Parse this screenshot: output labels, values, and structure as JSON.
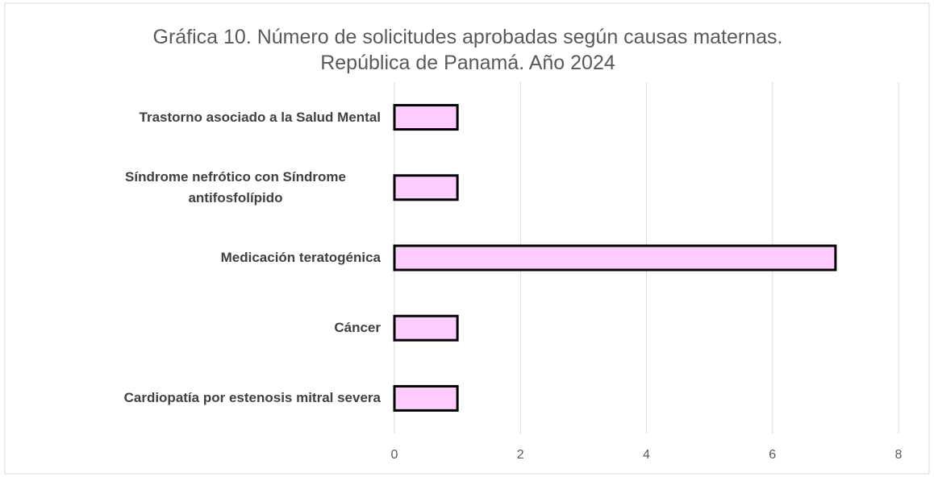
{
  "chart_data": {
    "type": "bar",
    "orientation": "horizontal",
    "title": "Gráfica 10. Número de solicitudes aprobadas según causas maternas. República de Panamá. Año 2024",
    "categories": [
      "Trastorno asociado a la Salud Mental",
      "Síndrome nefrótico con Síndrome antifosfolípido",
      "Medicación teratogénica",
      "Cáncer",
      "Cardiopatía por estenosis mitral severa"
    ],
    "values": [
      1,
      1,
      7,
      1,
      1
    ],
    "color": "#ffccff",
    "xlim": [
      0,
      8
    ],
    "xticks": [
      0,
      2,
      4,
      6,
      8
    ],
    "grid": true
  }
}
